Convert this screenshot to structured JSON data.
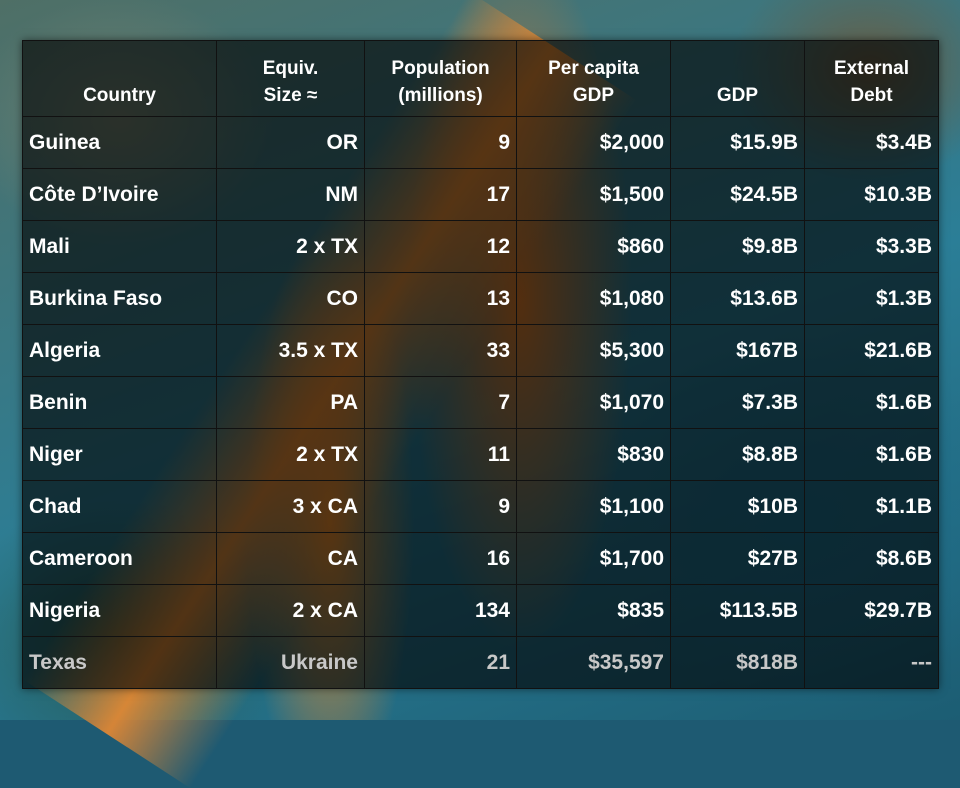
{
  "headers": {
    "country": [
      "Country"
    ],
    "equiv_size": [
      "Equiv.",
      "Size ≈"
    ],
    "population": [
      "Population",
      "(millions)"
    ],
    "per_capita_gdp": [
      "Per capita",
      "GDP"
    ],
    "gdp": [
      "GDP"
    ],
    "external_debt": [
      "External",
      "Debt"
    ]
  },
  "rows": [
    {
      "country": "Guinea",
      "equiv_size": "OR",
      "population": "9",
      "per_capita_gdp": "$2,000",
      "gdp": "$15.9B",
      "external_debt": "$3.4B"
    },
    {
      "country": "Côte D’Ivoire",
      "equiv_size": "NM",
      "population": "17",
      "per_capita_gdp": "$1,500",
      "gdp": "$24.5B",
      "external_debt": "$10.3B"
    },
    {
      "country": "Mali",
      "equiv_size": "2 x TX",
      "population": "12",
      "per_capita_gdp": "$860",
      "gdp": "$9.8B",
      "external_debt": "$3.3B"
    },
    {
      "country": "Burkina Faso",
      "equiv_size": "CO",
      "population": "13",
      "per_capita_gdp": "$1,080",
      "gdp": "$13.6B",
      "external_debt": "$1.3B"
    },
    {
      "country": "Algeria",
      "equiv_size": "3.5 x TX",
      "population": "33",
      "per_capita_gdp": "$5,300",
      "gdp": "$167B",
      "external_debt": "$21.6B"
    },
    {
      "country": "Benin",
      "equiv_size": "PA",
      "population": "7",
      "per_capita_gdp": "$1,070",
      "gdp": "$7.3B",
      "external_debt": "$1.6B"
    },
    {
      "country": "Niger",
      "equiv_size": "2 x TX",
      "population": "11",
      "per_capita_gdp": "$830",
      "gdp": "$8.8B",
      "external_debt": "$1.6B"
    },
    {
      "country": "Chad",
      "equiv_size": "3 x CA",
      "population": "9",
      "per_capita_gdp": "$1,100",
      "gdp": "$10B",
      "external_debt": "$1.1B"
    },
    {
      "country": "Cameroon",
      "equiv_size": "CA",
      "population": "16",
      "per_capita_gdp": "$1,700",
      "gdp": "$27B",
      "external_debt": "$8.6B"
    },
    {
      "country": "Nigeria",
      "equiv_size": "2 x CA",
      "population": "134",
      "per_capita_gdp": "$835",
      "gdp": "$113.5B",
      "external_debt": "$29.7B"
    },
    {
      "country": "Texas",
      "equiv_size": "Ukraine",
      "population": "21",
      "per_capita_gdp": "$35,597",
      "gdp": "$818B",
      "external_debt": "---"
    }
  ],
  "colors": {
    "text": "#ffffff",
    "texas_row_text": "#c8c8c8",
    "sand": "#f08c28",
    "water": "#2b7e97"
  }
}
